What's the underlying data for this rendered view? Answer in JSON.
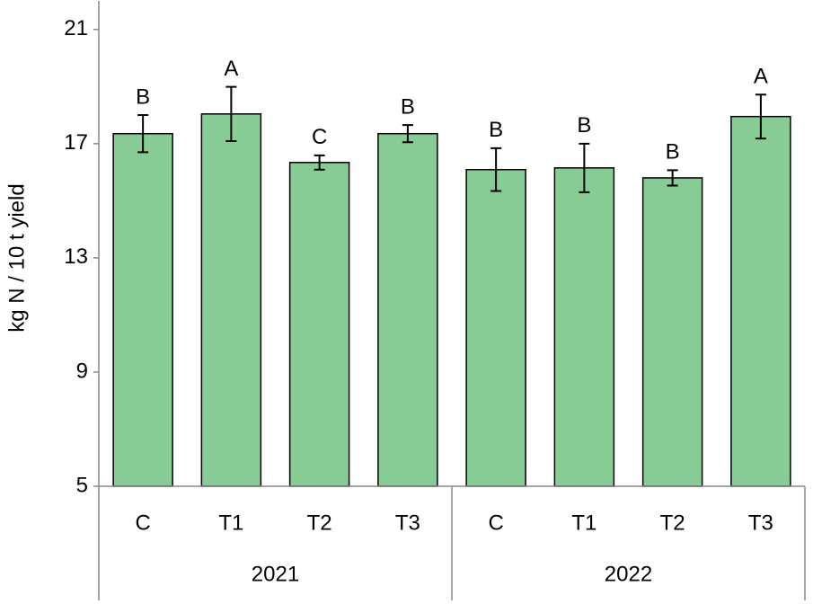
{
  "chart_data": {
    "type": "bar",
    "y_label": "kg N / 10 t yield",
    "categories": [
      "C",
      "T1",
      "T2",
      "T3",
      "C",
      "T1",
      "T2",
      "T3"
    ],
    "groups": [
      "2021",
      "2022"
    ],
    "values": [
      17.35,
      18.04,
      16.34,
      17.35,
      16.09,
      16.15,
      15.8,
      17.95
    ],
    "errors": [
      0.65,
      0.95,
      0.25,
      0.3,
      0.75,
      0.85,
      0.27,
      0.77
    ],
    "letters": [
      "B",
      "A",
      "C",
      "B",
      "B",
      "B",
      "B",
      "A"
    ],
    "color": "#88cc95",
    "ylim": [
      5,
      22
    ],
    "yticks": [
      5,
      9,
      13,
      17,
      21
    ],
    "grid": false
  }
}
